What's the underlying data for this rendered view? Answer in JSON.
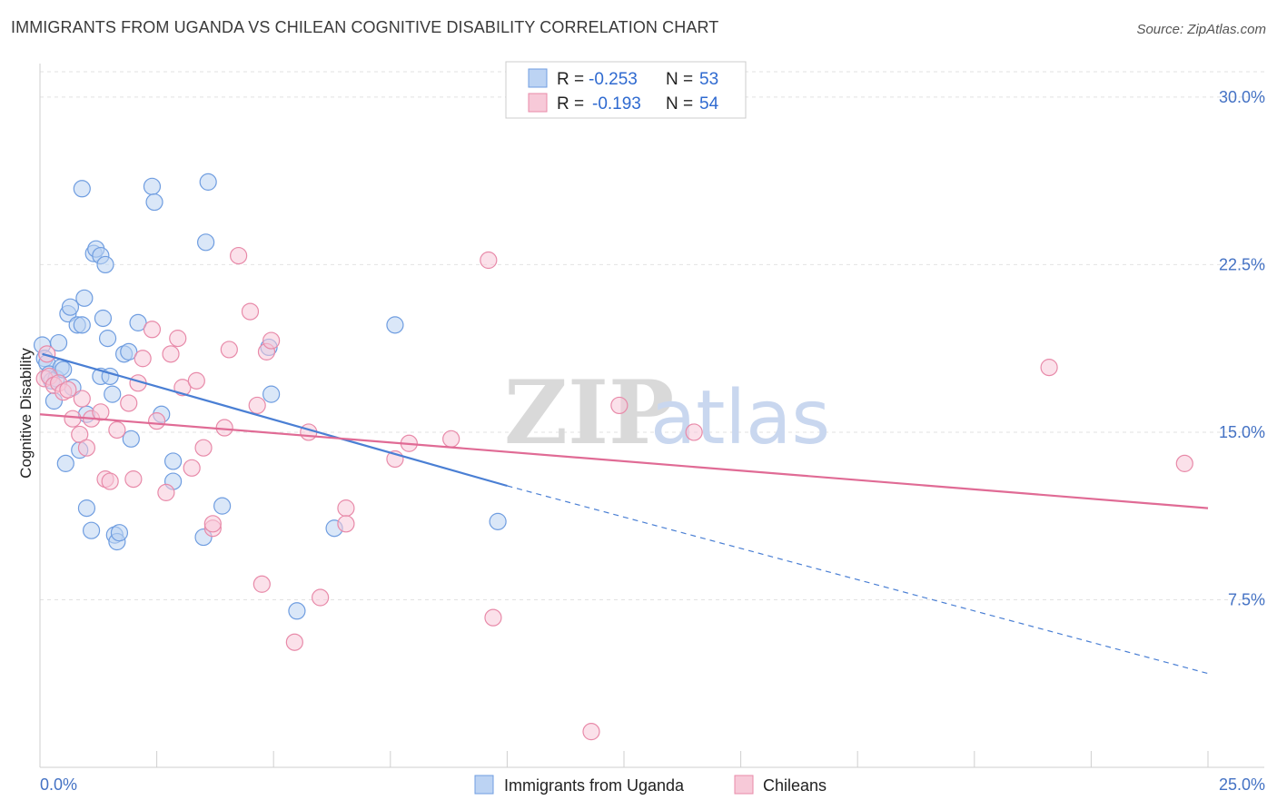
{
  "title": "IMMIGRANTS FROM UGANDA VS CHILEAN COGNITIVE DISABILITY CORRELATION CHART",
  "source": "Source: ZipAtlas.com",
  "watermark": {
    "zip": "ZIP",
    "atlas": "atlas"
  },
  "legend": {
    "r_label": "R =",
    "n_label": "N =",
    "entries": [
      {
        "r": "-0.253",
        "n": "53",
        "color": "#6f9de0",
        "fill": "#bcd3f3"
      },
      {
        "r": "-0.193",
        "n": "54",
        "color": "#e88aa9",
        "fill": "#f7c9d8"
      }
    ]
  },
  "bottom_legend": [
    "Immigrants from Uganda",
    "Chileans"
  ],
  "chart_data": {
    "type": "scatter",
    "xlabel": "",
    "ylabel": "Cognitive Disability",
    "xlim": [
      0,
      25
    ],
    "ylim": [
      0,
      31.5
    ],
    "x_tick_labels": [
      "0.0%",
      "25.0%"
    ],
    "y_ticks": [
      7.5,
      15.0,
      22.5,
      30.0
    ],
    "y_tick_labels": [
      "7.5%",
      "15.0%",
      "22.5%",
      "30.0%"
    ],
    "grid": true,
    "series": [
      {
        "name": "Immigrants from Uganda",
        "color": "#4a7fd4",
        "points": [
          [
            0.05,
            18.9
          ],
          [
            0.1,
            18.3
          ],
          [
            0.15,
            18.1
          ],
          [
            0.2,
            17.6
          ],
          [
            0.25,
            17.3
          ],
          [
            0.3,
            16.4
          ],
          [
            0.35,
            17.4
          ],
          [
            0.4,
            19.0
          ],
          [
            0.45,
            17.9
          ],
          [
            0.5,
            17.8
          ],
          [
            0.55,
            13.6
          ],
          [
            0.6,
            20.3
          ],
          [
            0.65,
            20.6
          ],
          [
            0.7,
            17.0
          ],
          [
            0.8,
            19.8
          ],
          [
            0.85,
            14.2
          ],
          [
            0.9,
            25.9
          ],
          [
            0.9,
            19.8
          ],
          [
            0.95,
            21.0
          ],
          [
            1.0,
            11.6
          ],
          [
            1.0,
            15.8
          ],
          [
            1.1,
            10.6
          ],
          [
            1.15,
            23.0
          ],
          [
            1.2,
            23.2
          ],
          [
            1.3,
            17.5
          ],
          [
            1.3,
            22.9
          ],
          [
            1.35,
            20.1
          ],
          [
            1.4,
            22.5
          ],
          [
            1.45,
            19.2
          ],
          [
            1.5,
            17.5
          ],
          [
            1.55,
            16.7
          ],
          [
            1.6,
            10.4
          ],
          [
            1.65,
            10.1
          ],
          [
            1.7,
            10.5
          ],
          [
            1.8,
            18.5
          ],
          [
            1.9,
            18.6
          ],
          [
            1.95,
            14.7
          ],
          [
            2.1,
            19.9
          ],
          [
            2.4,
            26.0
          ],
          [
            2.45,
            25.3
          ],
          [
            2.6,
            15.8
          ],
          [
            2.85,
            13.7
          ],
          [
            2.85,
            12.8
          ],
          [
            3.5,
            10.3
          ],
          [
            3.55,
            23.5
          ],
          [
            3.6,
            26.2
          ],
          [
            3.9,
            11.7
          ],
          [
            4.9,
            18.8
          ],
          [
            4.95,
            16.7
          ],
          [
            5.5,
            7.0
          ],
          [
            6.3,
            10.7
          ],
          [
            7.6,
            19.8
          ],
          [
            9.8,
            11.0
          ]
        ],
        "trend": {
          "x1": 0.05,
          "y1": 18.5,
          "x2": 10.0,
          "y2": 12.6,
          "dash_to_x": 25.0,
          "dash_to_y": 4.2
        }
      },
      {
        "name": "Chileans",
        "color": "#e06b95",
        "points": [
          [
            0.1,
            17.4
          ],
          [
            0.15,
            18.5
          ],
          [
            0.2,
            17.5
          ],
          [
            0.3,
            17.1
          ],
          [
            0.4,
            17.2
          ],
          [
            0.5,
            16.8
          ],
          [
            0.6,
            16.9
          ],
          [
            0.7,
            15.6
          ],
          [
            0.85,
            14.9
          ],
          [
            0.9,
            16.5
          ],
          [
            1.0,
            14.3
          ],
          [
            1.1,
            15.6
          ],
          [
            1.3,
            15.9
          ],
          [
            1.4,
            12.9
          ],
          [
            1.5,
            12.8
          ],
          [
            1.65,
            15.1
          ],
          [
            1.9,
            16.3
          ],
          [
            2.0,
            12.9
          ],
          [
            2.1,
            17.2
          ],
          [
            2.2,
            18.3
          ],
          [
            2.4,
            19.6
          ],
          [
            2.5,
            15.5
          ],
          [
            2.7,
            12.3
          ],
          [
            2.8,
            18.5
          ],
          [
            2.95,
            19.2
          ],
          [
            3.05,
            17.0
          ],
          [
            3.25,
            13.4
          ],
          [
            3.35,
            17.3
          ],
          [
            3.5,
            14.3
          ],
          [
            3.7,
            10.7
          ],
          [
            3.7,
            10.9
          ],
          [
            3.95,
            15.2
          ],
          [
            4.05,
            18.7
          ],
          [
            4.25,
            22.9
          ],
          [
            4.5,
            20.4
          ],
          [
            4.65,
            16.2
          ],
          [
            4.75,
            8.2
          ],
          [
            4.85,
            18.6
          ],
          [
            4.95,
            19.1
          ],
          [
            5.45,
            5.6
          ],
          [
            5.75,
            15.0
          ],
          [
            6.0,
            7.6
          ],
          [
            6.55,
            11.6
          ],
          [
            6.55,
            10.9
          ],
          [
            7.6,
            13.8
          ],
          [
            7.9,
            14.5
          ],
          [
            8.8,
            14.7
          ],
          [
            9.6,
            22.7
          ],
          [
            9.7,
            6.7
          ],
          [
            11.8,
            1.6
          ],
          [
            12.4,
            16.2
          ],
          [
            14.0,
            15.0
          ],
          [
            21.6,
            17.9
          ],
          [
            24.5,
            13.6
          ]
        ],
        "trend": {
          "x1": 0.0,
          "y1": 15.8,
          "x2": 25.0,
          "y2": 11.6
        }
      }
    ]
  }
}
